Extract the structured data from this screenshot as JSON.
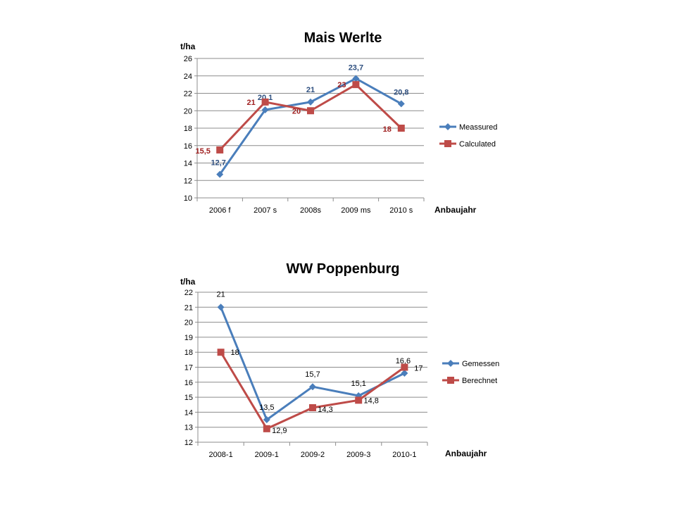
{
  "chart_data": [
    {
      "type": "line",
      "title": "Mais Werlte",
      "ylabel": "t/ha",
      "xlabel": "Anbaujahr",
      "categories": [
        "2006 f",
        "2007 s",
        "2008s",
        "2009 ms",
        "2010 s"
      ],
      "ylim": [
        10,
        26
      ],
      "ystep": 2,
      "grid": true,
      "legend_position": "right",
      "data_labels_bold": true,
      "series": [
        {
          "name": "Meassured",
          "values": [
            12.7,
            20.1,
            21,
            23.7,
            20.8
          ],
          "labels": [
            "12,7",
            "20,1",
            "21",
            "23,7",
            "20,8"
          ],
          "color": "#4a7ebb",
          "label_color": "#2e4f7f",
          "marker": "diamond"
        },
        {
          "name": "Calculated",
          "values": [
            15.5,
            21,
            20,
            23,
            18
          ],
          "labels": [
            "15,5",
            "21",
            "20",
            "23",
            "18"
          ],
          "color": "#be4b48",
          "label_color": "#a02020",
          "marker": "square"
        }
      ]
    },
    {
      "type": "line",
      "title": "WW Poppenburg",
      "ylabel": "t/ha",
      "xlabel": "Anbaujahr",
      "categories": [
        "2008-1",
        "2009-1",
        "2009-2",
        "2009-3",
        "2010-1"
      ],
      "ylim": [
        12,
        22
      ],
      "ystep": 1,
      "grid": true,
      "legend_position": "right",
      "data_labels_bold": false,
      "series": [
        {
          "name": "Gemessen",
          "values": [
            21,
            13.5,
            15.7,
            15.1,
            16.6
          ],
          "labels": [
            "21",
            "13,5",
            "15,7",
            "15,1",
            "16,6"
          ],
          "color": "#4a7ebb",
          "label_color": "#000000",
          "marker": "diamond"
        },
        {
          "name": "Berechnet",
          "values": [
            18,
            12.9,
            14.3,
            14.8,
            17
          ],
          "labels": [
            "18",
            "12,9",
            "14,3",
            "14,8",
            "17"
          ],
          "color": "#be4b48",
          "label_color": "#000000",
          "marker": "square"
        }
      ]
    }
  ]
}
